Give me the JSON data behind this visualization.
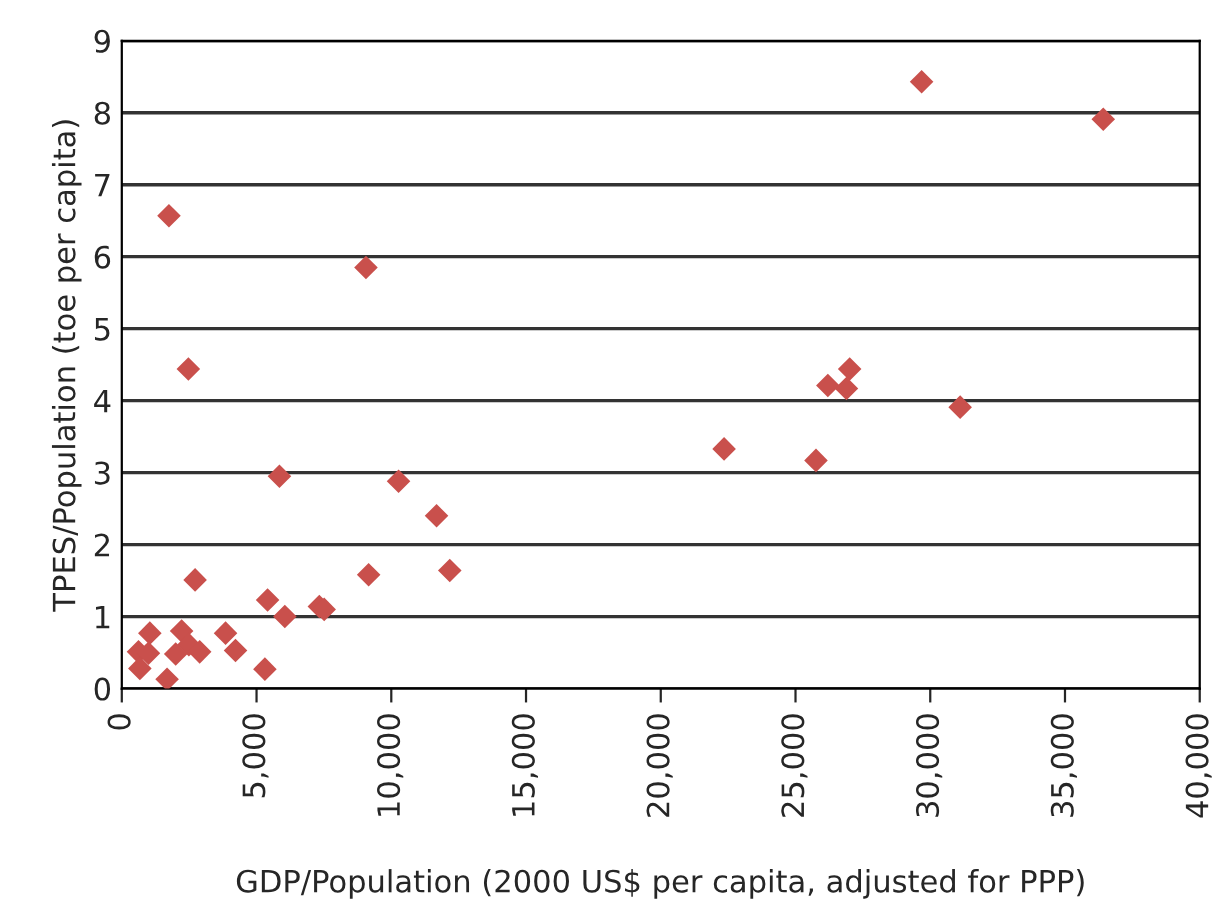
{
  "chart_data": {
    "type": "scatter",
    "xlabel": "GDP/Population (2000 US$ per capita, adjusted for PPP)",
    "ylabel": "TPES/Population (toe per capita)",
    "x": [
      29680,
      36420,
      27010,
      26200,
      26890,
      31110,
      22350,
      25760,
      1750,
      9060,
      2470,
      5850,
      10270,
      11680,
      2720,
      9160,
      12170,
      5410,
      6050,
      7330,
      7510,
      1040,
      2220,
      2490,
      2890,
      2000,
      3850,
      4220,
      620,
      990,
      670,
      1680,
      5310
    ],
    "series": [
      {
        "color": "#c9504c",
        "values": [
          8.43,
          7.91,
          4.44,
          4.21,
          4.17,
          3.91,
          3.33,
          3.17,
          6.57,
          5.85,
          4.44,
          2.95,
          2.88,
          2.4,
          1.51,
          1.58,
          1.64,
          1.23,
          1.0,
          1.14,
          1.1,
          0.77,
          0.8,
          0.61,
          0.51,
          0.48,
          0.77,
          0.53,
          0.51,
          0.49,
          0.28,
          0.13,
          0.27
        ]
      }
    ],
    "marker": "diamond",
    "grid": "y",
    "xlim": [
      0,
      40000
    ],
    "xticks": [
      {
        "value": 0,
        "label": "0"
      },
      {
        "value": 5000,
        "label": "5,000"
      },
      {
        "value": 10000,
        "label": "10,000"
      },
      {
        "value": 15000,
        "label": "15,000"
      },
      {
        "value": 20000,
        "label": "20,000"
      },
      {
        "value": 25000,
        "label": "25,000"
      },
      {
        "value": 30000,
        "label": "30,000"
      },
      {
        "value": 35000,
        "label": "35,000"
      },
      {
        "value": 40000,
        "label": "40,000"
      }
    ],
    "ylim": [
      0,
      9
    ],
    "yticks": [
      0,
      1,
      2,
      3,
      4,
      5,
      6,
      7,
      8,
      9
    ]
  }
}
